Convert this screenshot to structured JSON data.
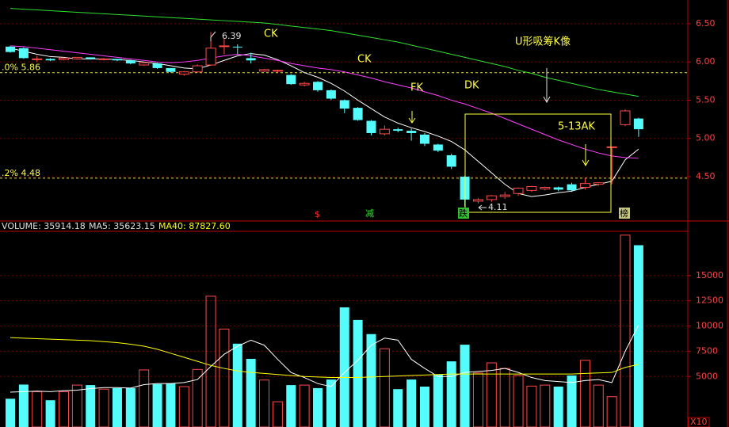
{
  "chart_data": [
    {
      "type": "candlestick",
      "open": [
        6.2,
        6.18,
        6.03,
        6.04,
        6.03,
        6.04,
        6.06,
        6.03,
        6.04,
        6.02,
        5.96,
        5.98,
        5.92,
        5.84,
        5.87,
        5.96,
        6.2,
        6.2,
        6.05,
        5.88,
        5.88,
        5.83,
        5.7,
        5.74,
        5.63,
        5.5,
        5.4,
        5.23,
        5.06,
        5.12,
        5.1,
        5.05,
        4.92,
        4.78,
        4.5,
        4.18,
        4.2,
        4.24,
        4.28,
        4.32,
        4.34,
        4.36,
        4.4,
        4.36,
        4.4,
        4.88,
        5.18,
        5.26
      ],
      "high": [
        6.21,
        6.19,
        6.08,
        6.05,
        6.05,
        6.06,
        6.06,
        6.05,
        6.04,
        6.03,
        6.0,
        5.99,
        5.92,
        5.88,
        5.97,
        6.39,
        6.3,
        6.23,
        6.12,
        5.91,
        5.9,
        5.84,
        5.74,
        5.75,
        5.64,
        5.51,
        5.41,
        5.24,
        5.17,
        5.14,
        5.13,
        5.07,
        4.93,
        4.8,
        4.51,
        4.22,
        4.26,
        4.3,
        4.36,
        4.38,
        4.37,
        4.37,
        4.42,
        4.48,
        4.43,
        4.89,
        5.38,
        5.27
      ],
      "low": [
        6.12,
        6.04,
        6.0,
        6.01,
        6.02,
        6.03,
        6.03,
        6.02,
        6.01,
        5.97,
        5.95,
        5.91,
        5.86,
        5.82,
        5.86,
        5.95,
        6.1,
        6.1,
        5.98,
        5.87,
        5.86,
        5.7,
        5.68,
        5.61,
        5.5,
        5.33,
        5.23,
        5.04,
        5.04,
        5.08,
        4.97,
        4.9,
        4.82,
        4.6,
        4.11,
        4.15,
        4.17,
        4.21,
        4.25,
        4.3,
        4.32,
        4.31,
        4.3,
        4.33,
        4.38,
        4.4,
        5.16,
        5.02
      ],
      "close": [
        6.13,
        6.05,
        6.04,
        6.02,
        6.05,
        6.06,
        6.04,
        6.04,
        6.02,
        5.98,
        5.99,
        5.92,
        5.87,
        5.87,
        5.95,
        6.18,
        6.21,
        6.19,
        6.02,
        5.9,
        5.89,
        5.71,
        5.72,
        5.63,
        5.52,
        5.39,
        5.24,
        5.07,
        5.12,
        5.1,
        5.07,
        4.93,
        4.84,
        4.63,
        4.2,
        4.2,
        4.25,
        4.26,
        4.35,
        4.37,
        4.36,
        4.33,
        4.32,
        4.41,
        4.42,
        4.89,
        5.36,
        5.12
      ],
      "up_color": "#ff4a4a",
      "down_color": "#54fcfc",
      "lines": [
        {
          "color": "#ffffff",
          "values": [
            6.18,
            6.14,
            6.1,
            6.07,
            6.06,
            6.04,
            6.04,
            6.04,
            6.03,
            6.02,
            6.0,
            5.98,
            5.95,
            5.92,
            5.91,
            5.96,
            6.02,
            6.08,
            6.11,
            6.09,
            6.03,
            5.95,
            5.86,
            5.8,
            5.72,
            5.62,
            5.5,
            5.39,
            5.28,
            5.2,
            5.14,
            5.09,
            5.03,
            4.96,
            4.85,
            4.7,
            4.55,
            4.4,
            4.28,
            4.24,
            4.26,
            4.29,
            4.31,
            4.36,
            4.4,
            4.44,
            4.72,
            4.86
          ]
        },
        {
          "color": "#ff40ff",
          "values": [
            6.21,
            6.2,
            6.18,
            6.16,
            6.14,
            6.12,
            6.1,
            6.08,
            6.06,
            6.04,
            6.02,
            6.0,
            5.99,
            6.0,
            6.02,
            6.05,
            6.08,
            6.1,
            6.08,
            6.05,
            6.02,
            5.98,
            5.95,
            5.92,
            5.9,
            5.87,
            5.83,
            5.79,
            5.74,
            5.7,
            5.66,
            5.61,
            5.56,
            5.5,
            5.45,
            5.39,
            5.33,
            5.26,
            5.19,
            5.12,
            5.05,
            4.98,
            4.92,
            4.86,
            4.81,
            4.77,
            4.75,
            4.74
          ]
        },
        {
          "color": "#30e030",
          "values": [
            6.7,
            6.69,
            6.68,
            6.67,
            6.66,
            6.65,
            6.64,
            6.63,
            6.62,
            6.61,
            6.6,
            6.59,
            6.58,
            6.57,
            6.56,
            6.55,
            6.54,
            6.53,
            6.52,
            6.51,
            6.49,
            6.47,
            6.45,
            6.43,
            6.41,
            6.38,
            6.35,
            6.32,
            6.29,
            6.26,
            6.22,
            6.18,
            6.14,
            6.1,
            6.06,
            6.02,
            5.98,
            5.94,
            5.89,
            5.85,
            5.8,
            5.76,
            5.72,
            5.68,
            5.64,
            5.61,
            5.58,
            5.55
          ]
        }
      ],
      "hlines": [
        {
          "label": ".0% 5.86",
          "value": 5.86
        },
        {
          "label": ".2% 4.48",
          "value": 4.48
        }
      ],
      "annotations": [
        "6.39",
        "CK",
        "CK",
        "FK",
        "DK",
        "U形吸筹K像",
        "5-13AK",
        "4.11"
      ],
      "signals": [
        "$",
        "减",
        "跌",
        "榜"
      ],
      "ylim": [
        3.93,
        6.81
      ],
      "yticks": [
        {
          "value": 4.5,
          "label": "4.50"
        },
        {
          "value": 5,
          "label": "5.00"
        },
        {
          "value": 5.5,
          "label": "5.50"
        },
        {
          "value": 6,
          "label": "6.00"
        },
        {
          "value": 6.5,
          "label": "6.50"
        }
      ],
      "grid": true
    },
    {
      "type": "bar",
      "header": [
        "VOLUME: 35914.18",
        "MA5: 35623.15",
        "MA40: 87827.60"
      ],
      "values": [
        2800,
        4200,
        3500,
        2650,
        3500,
        4150,
        4150,
        3750,
        3850,
        3850,
        5650,
        4250,
        4300,
        4000,
        5700,
        12950,
        9700,
        8250,
        6750,
        4650,
        2500,
        4150,
        4150,
        3850,
        4700,
        11850,
        10600,
        9200,
        7750,
        3750,
        4700,
        4000,
        5200,
        6500,
        8150,
        5350,
        6350,
        5800,
        5100,
        4050,
        4150,
        4000,
        5100,
        6600,
        4150,
        3000,
        19000,
        18000
      ],
      "lines": [
        {
          "color": "#ffffff",
          "values": [
            3450,
            3500,
            3550,
            3500,
            3600,
            3650,
            3800,
            3900,
            3900,
            3850,
            4200,
            4300,
            4300,
            4400,
            4700,
            6000,
            7200,
            8000,
            8600,
            8100,
            6700,
            5400,
            4900,
            4300,
            4000,
            5400,
            6600,
            8100,
            8800,
            8600,
            6700,
            5800,
            5000,
            5000,
            5400,
            5500,
            5600,
            5800,
            5400,
            4900,
            4600,
            4500,
            4400,
            4600,
            4700,
            4400,
            7500,
            10100
          ]
        },
        {
          "color": "#ffff00",
          "values": [
            8850,
            8800,
            8750,
            8700,
            8650,
            8600,
            8550,
            8450,
            8350,
            8200,
            8000,
            7700,
            7300,
            6900,
            6500,
            6100,
            5800,
            5550,
            5400,
            5300,
            5200,
            5100,
            5000,
            4950,
            4900,
            4900,
            4900,
            4950,
            5000,
            5050,
            5100,
            5150,
            5200,
            5250,
            5250,
            5250,
            5250,
            5250,
            5250,
            5250,
            5250,
            5250,
            5250,
            5300,
            5350,
            5400,
            5900,
            6200
          ]
        }
      ],
      "unit": "X10",
      "ylim": [
        0,
        19375
      ],
      "yticks": [
        5000,
        7500,
        10000,
        12500,
        15000
      ],
      "grid": true
    }
  ]
}
